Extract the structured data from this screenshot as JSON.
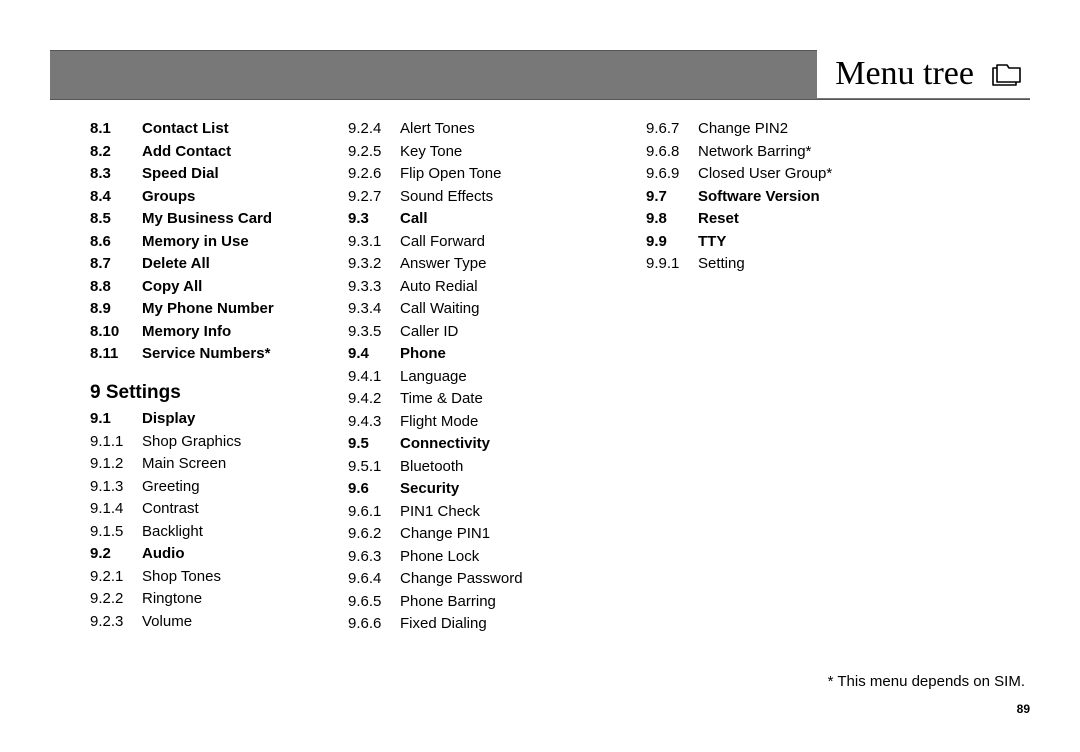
{
  "title": "Menu tree",
  "page_number": "89",
  "footnote": "* This menu depends on SIM.",
  "section_heading": "9 Settings",
  "col1": [
    {
      "num": "8.1",
      "label": "Contact List",
      "bold": true
    },
    {
      "num": "8.2",
      "label": "Add Contact",
      "bold": true
    },
    {
      "num": "8.3",
      "label": "Speed Dial",
      "bold": true
    },
    {
      "num": "8.4",
      "label": "Groups",
      "bold": true
    },
    {
      "num": "8.5",
      "label": "My Business Card",
      "bold": true
    },
    {
      "num": "8.6",
      "label": "Memory in Use",
      "bold": true
    },
    {
      "num": "8.7",
      "label": "Delete All",
      "bold": true
    },
    {
      "num": "8.8",
      "label": "Copy All",
      "bold": true
    },
    {
      "num": "8.9",
      "label": "My Phone Number",
      "bold": true
    },
    {
      "num": "8.10",
      "label": "Memory Info",
      "bold": true
    },
    {
      "num": "8.11",
      "label": "Service Numbers*",
      "bold": true
    }
  ],
  "col1b": [
    {
      "num": "9.1",
      "label": "Display",
      "bold": true
    },
    {
      "num": "9.1.1",
      "label": "Shop Graphics",
      "bold": false
    },
    {
      "num": "9.1.2",
      "label": "Main Screen",
      "bold": false
    },
    {
      "num": "9.1.3",
      "label": "Greeting",
      "bold": false
    },
    {
      "num": "9.1.4",
      "label": "Contrast",
      "bold": false
    },
    {
      "num": "9.1.5",
      "label": "Backlight",
      "bold": false
    },
    {
      "num": "9.2",
      "label": "Audio",
      "bold": true
    },
    {
      "num": "9.2.1",
      "label": "Shop Tones",
      "bold": false
    },
    {
      "num": "9.2.2",
      "label": "Ringtone",
      "bold": false
    },
    {
      "num": "9.2.3",
      "label": "Volume",
      "bold": false
    }
  ],
  "col2": [
    {
      "num": "9.2.4",
      "label": "Alert Tones",
      "bold": false
    },
    {
      "num": "9.2.5",
      "label": "Key Tone",
      "bold": false
    },
    {
      "num": "9.2.6",
      "label": "Flip Open Tone",
      "bold": false
    },
    {
      "num": "9.2.7",
      "label": "Sound Effects",
      "bold": false
    },
    {
      "num": "9.3",
      "label": "Call",
      "bold": true
    },
    {
      "num": "9.3.1",
      "label": "Call Forward",
      "bold": false
    },
    {
      "num": "9.3.2",
      "label": "Answer Type",
      "bold": false
    },
    {
      "num": "9.3.3",
      "label": "Auto Redial",
      "bold": false
    },
    {
      "num": "9.3.4",
      "label": "Call Waiting",
      "bold": false
    },
    {
      "num": "9.3.5",
      "label": "Caller ID",
      "bold": false
    },
    {
      "num": "9.4",
      "label": "Phone",
      "bold": true
    },
    {
      "num": "9.4.1",
      "label": "Language",
      "bold": false
    },
    {
      "num": "9.4.2",
      "label": "Time & Date",
      "bold": false
    },
    {
      "num": "9.4.3",
      "label": "Flight Mode",
      "bold": false
    },
    {
      "num": "9.5",
      "label": "Connectivity",
      "bold": true
    },
    {
      "num": "9.5.1",
      "label": "Bluetooth",
      "bold": false
    },
    {
      "num": "9.6",
      "label": "Security",
      "bold": true
    },
    {
      "num": "9.6.1",
      "label": "PIN1 Check",
      "bold": false
    },
    {
      "num": "9.6.2",
      "label": "Change PIN1",
      "bold": false
    },
    {
      "num": "9.6.3",
      "label": "Phone Lock",
      "bold": false
    },
    {
      "num": "9.6.4",
      "label": "Change Password",
      "bold": false
    },
    {
      "num": "9.6.5",
      "label": "Phone Barring",
      "bold": false
    },
    {
      "num": "9.6.6",
      "label": "Fixed Dialing",
      "bold": false
    }
  ],
  "col3": [
    {
      "num": "9.6.7",
      "label": "Change PIN2",
      "bold": false
    },
    {
      "num": "9.6.8",
      "label": "Network Barring*",
      "bold": false
    },
    {
      "num": "9.6.9",
      "label": "Closed User Group*",
      "bold": false
    },
    {
      "num": "9.7",
      "label": "Software Version",
      "bold": true
    },
    {
      "num": "9.8",
      "label": "Reset",
      "bold": true
    },
    {
      "num": "9.9",
      "label": "TTY",
      "bold": true
    },
    {
      "num": "9.9.1",
      "label": "Setting",
      "bold": false
    }
  ]
}
